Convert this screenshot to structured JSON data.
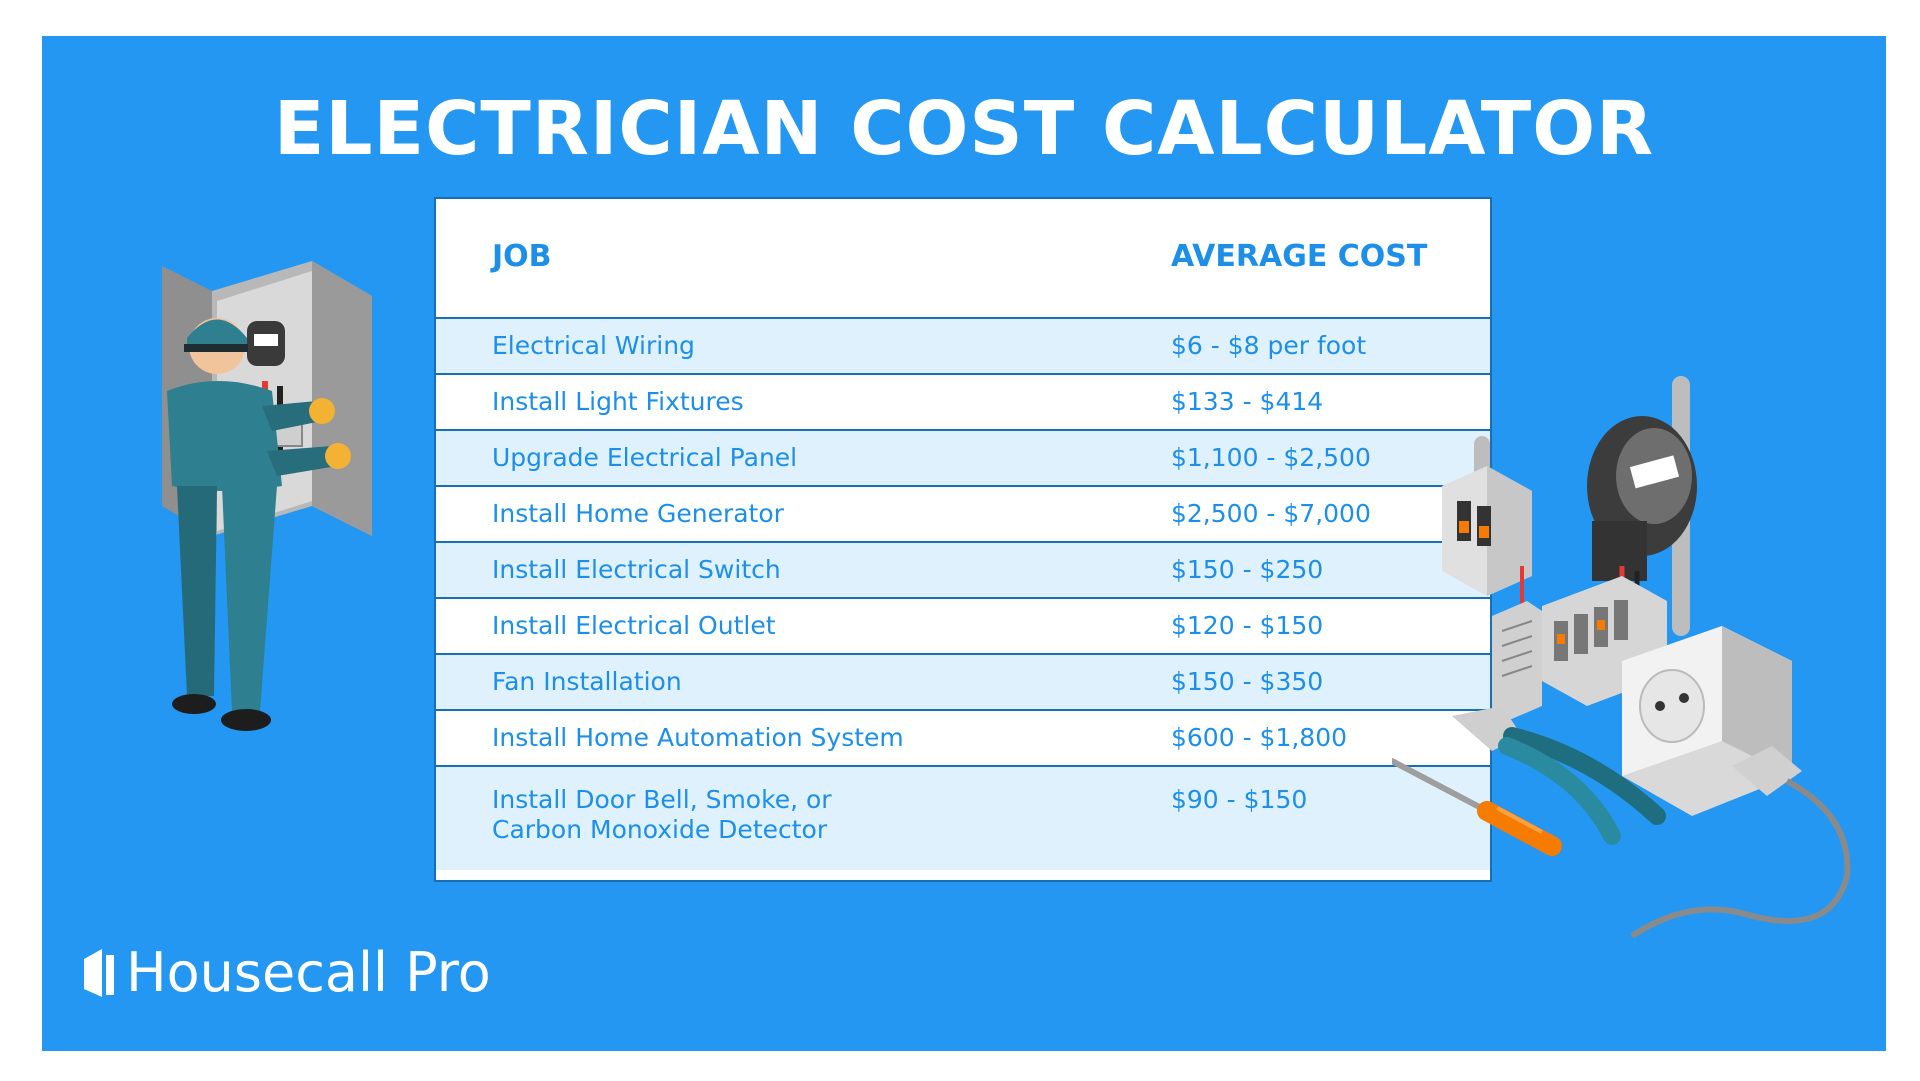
{
  "title": "ELECTRICIAN COST CALCULATOR",
  "table": {
    "headers": {
      "job": "JOB",
      "cost": "AVERAGE COST"
    },
    "rows": [
      {
        "job": "Electrical Wiring",
        "cost": "$6 - $8 per foot"
      },
      {
        "job": "Install Light Fixtures",
        "cost": "$133 - $414"
      },
      {
        "job": "Upgrade Electrical Panel",
        "cost": "$1,100 - $2,500"
      },
      {
        "job": "Install Home Generator",
        "cost": "$2,500 - $7,000"
      },
      {
        "job": "Install Electrical Switch",
        "cost": "$150 - $250"
      },
      {
        "job": "Install Electrical Outlet",
        "cost": "$120 - $150"
      },
      {
        "job": "Fan Installation",
        "cost": "$150 - $350"
      },
      {
        "job": "Install Home Automation System",
        "cost": "$600 - $1,800"
      }
    ],
    "last_row": {
      "job_line1": "Install Door Bell, Smoke, or",
      "job_line2": "Carbon  Monoxide Detector",
      "cost": "$90 - $150"
    }
  },
  "brand": {
    "name": "Housecall Pro",
    "logo_icon": "housecall-pro-logo-icon"
  },
  "colors": {
    "background": "#2397f2",
    "text_accent": "#1d8fe9",
    "row_alt": "#dff1fc",
    "border": "#1a6fb3"
  },
  "illustrations": [
    "electrician-illustration",
    "electrical-equipment-illustration"
  ]
}
